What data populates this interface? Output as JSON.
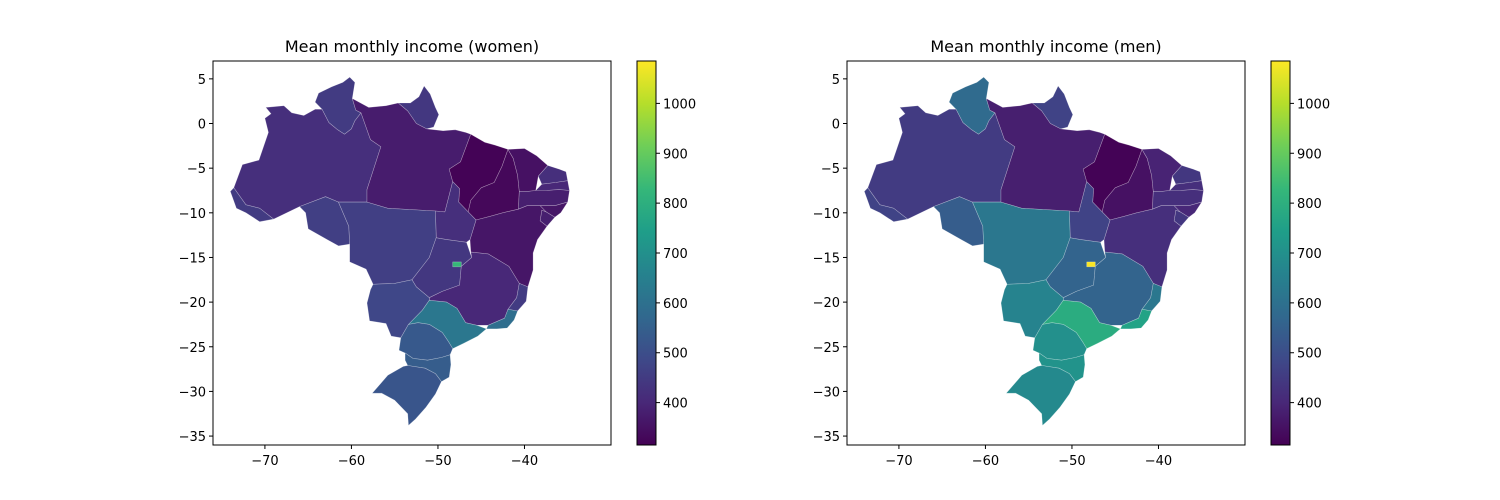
{
  "chart_data": [
    {
      "type": "choropleth",
      "title": "Mean monthly income (women)",
      "xlabel": "",
      "ylabel": "",
      "xlim": [
        -76,
        -30
      ],
      "ylim": [
        -36,
        7
      ],
      "xticks": [
        -70,
        -60,
        -50,
        -40
      ],
      "yticks": [
        5,
        0,
        -5,
        -10,
        -15,
        -20,
        -25,
        -30,
        -35
      ],
      "colorbar": {
        "colormap": "viridis",
        "range": [
          315,
          1085
        ],
        "ticks": [
          400,
          500,
          600,
          700,
          800,
          900,
          1000
        ]
      },
      "regions": [
        {
          "region": "Roraima",
          "value": 450
        },
        {
          "region": "Amapá",
          "value": 440
        },
        {
          "region": "Amazonas",
          "value": 420
        },
        {
          "region": "Acre",
          "value": 450
        },
        {
          "region": "Pará",
          "value": 375
        },
        {
          "region": "Maranhão",
          "value": 320
        },
        {
          "region": "Piauí",
          "value": 330
        },
        {
          "region": "Ceará",
          "value": 350
        },
        {
          "region": "Rio Grande do Norte",
          "value": 420
        },
        {
          "region": "Paraíba",
          "value": 400
        },
        {
          "region": "Pernambuco",
          "value": 380
        },
        {
          "region": "Alagoas",
          "value": 360
        },
        {
          "region": "Sergipe",
          "value": 380
        },
        {
          "region": "Bahia",
          "value": 360
        },
        {
          "region": "Tocantins",
          "value": 420
        },
        {
          "region": "Rondônia",
          "value": 460
        },
        {
          "region": "Mato Grosso",
          "value": 460
        },
        {
          "region": "Goiás",
          "value": 440
        },
        {
          "region": "Distrito Federal",
          "value": 830
        },
        {
          "region": "Minas Gerais",
          "value": 400
        },
        {
          "region": "Espírito Santo",
          "value": 450
        },
        {
          "region": "Mato Grosso do Sul",
          "value": 480
        },
        {
          "region": "São Paulo",
          "value": 620
        },
        {
          "region": "Rio de Janeiro",
          "value": 590
        },
        {
          "region": "Paraná",
          "value": 530
        },
        {
          "region": "Santa Catarina",
          "value": 540
        },
        {
          "region": "Rio Grande do Sul",
          "value": 520
        }
      ]
    },
    {
      "type": "choropleth",
      "title": "Mean monthly income (men)",
      "xlabel": "",
      "ylabel": "",
      "xlim": [
        -76,
        -30
      ],
      "ylim": [
        -36,
        7
      ],
      "xticks": [
        -70,
        -60,
        -50,
        -40
      ],
      "yticks": [
        5,
        0,
        -5,
        -10,
        -15,
        -20,
        -25,
        -30,
        -35
      ],
      "colorbar": {
        "colormap": "viridis",
        "range": [
          315,
          1085
        ],
        "ticks": [
          400,
          500,
          600,
          700,
          800,
          900,
          1000
        ]
      },
      "regions": [
        {
          "region": "Roraima",
          "value": 580
        },
        {
          "region": "Amapá",
          "value": 470
        },
        {
          "region": "Amazonas",
          "value": 450
        },
        {
          "region": "Acre",
          "value": 470
        },
        {
          "region": "Pará",
          "value": 380
        },
        {
          "region": "Maranhão",
          "value": 320
        },
        {
          "region": "Piauí",
          "value": 350
        },
        {
          "region": "Ceará",
          "value": 390
        },
        {
          "region": "Rio Grande do Norte",
          "value": 440
        },
        {
          "region": "Paraíba",
          "value": 420
        },
        {
          "region": "Pernambuco",
          "value": 420
        },
        {
          "region": "Alagoas",
          "value": 400
        },
        {
          "region": "Sergipe",
          "value": 440
        },
        {
          "region": "Bahia",
          "value": 420
        },
        {
          "region": "Tocantins",
          "value": 470
        },
        {
          "region": "Rondônia",
          "value": 540
        },
        {
          "region": "Mato Grosso",
          "value": 620
        },
        {
          "region": "Goiás",
          "value": 560
        },
        {
          "region": "Distrito Federal",
          "value": 1080
        },
        {
          "region": "Minas Gerais",
          "value": 560
        },
        {
          "region": "Espírito Santo",
          "value": 620
        },
        {
          "region": "Mato Grosso do Sul",
          "value": 660
        },
        {
          "region": "São Paulo",
          "value": 790
        },
        {
          "region": "Rio de Janeiro",
          "value": 760
        },
        {
          "region": "Paraná",
          "value": 700
        },
        {
          "region": "Santa Catarina",
          "value": 710
        },
        {
          "region": "Rio Grande do Sul",
          "value": 680
        }
      ]
    }
  ]
}
